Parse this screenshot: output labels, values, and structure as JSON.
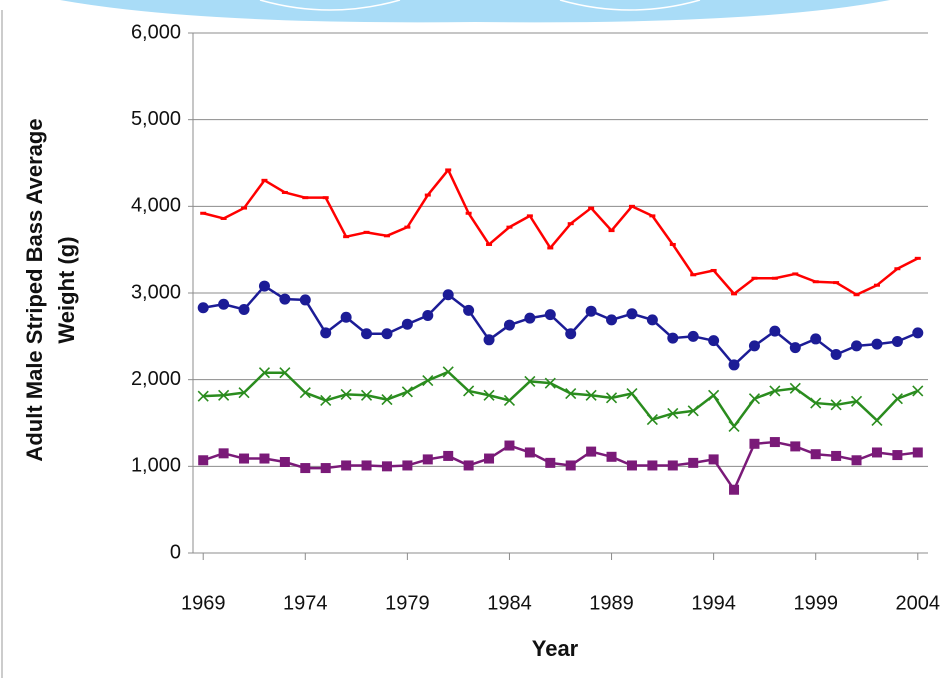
{
  "chart_data": {
    "type": "line",
    "xlabel": "Year",
    "ylabel": [
      "Adult Male Striped Bass Average",
      "Weight (g)"
    ],
    "x": [
      1969,
      1970,
      1971,
      1972,
      1973,
      1974,
      1975,
      1976,
      1977,
      1978,
      1979,
      1980,
      1981,
      1982,
      1983,
      1984,
      1985,
      1986,
      1987,
      1988,
      1989,
      1990,
      1991,
      1992,
      1993,
      1994,
      1995,
      1996,
      1997,
      1998,
      1999,
      2000,
      2001,
      2002,
      2003,
      2004
    ],
    "series": [
      {
        "color": "#ff0000",
        "marker": "dash",
        "values": [
          3920,
          3860,
          3980,
          4300,
          4160,
          4100,
          4100,
          3650,
          3700,
          3660,
          3760,
          4130,
          4420,
          3920,
          3560,
          3760,
          3890,
          3520,
          3800,
          3980,
          3720,
          4000,
          3890,
          3560,
          3210,
          3260,
          2990,
          3170,
          3170,
          3220,
          3130,
          3120,
          2980,
          3090,
          3280,
          3400
        ]
      },
      {
        "color": "#1c1c96",
        "marker": "circle",
        "values": [
          2830,
          2870,
          2810,
          3080,
          2930,
          2920,
          2540,
          2720,
          2530,
          2530,
          2640,
          2740,
          2980,
          2800,
          2460,
          2630,
          2710,
          2750,
          2530,
          2790,
          2690,
          2760,
          2690,
          2480,
          2500,
          2450,
          2170,
          2390,
          2560,
          2370,
          2470,
          2290,
          2390,
          2410,
          2440,
          2540
        ]
      },
      {
        "color": "#2a8c1e",
        "marker": "cross",
        "values": [
          1810,
          1820,
          1850,
          2080,
          2080,
          1850,
          1760,
          1830,
          1820,
          1770,
          1860,
          1990,
          2090,
          1870,
          1820,
          1760,
          1980,
          1960,
          1840,
          1820,
          1790,
          1840,
          1540,
          1610,
          1640,
          1820,
          1460,
          1780,
          1870,
          1900,
          1730,
          1710,
          1750,
          1530,
          1780,
          1870
        ]
      },
      {
        "color": "#7a1a78",
        "marker": "square",
        "values": [
          1070,
          1150,
          1090,
          1090,
          1050,
          980,
          980,
          1010,
          1010,
          1000,
          1010,
          1080,
          1120,
          1010,
          1090,
          1240,
          1160,
          1040,
          1010,
          1170,
          1110,
          1010,
          1010,
          1010,
          1040,
          1080,
          730,
          1260,
          1280,
          1230,
          1140,
          1120,
          1070,
          1160,
          1130,
          1160
        ]
      }
    ],
    "xlim": [
      1968.5,
      2004.5
    ],
    "xticks": [
      1969,
      1974,
      1979,
      1984,
      1989,
      1994,
      1999,
      2004
    ],
    "ylim": [
      0,
      6000
    ],
    "yticks": [
      0,
      {
        "value": 1000,
        "label": "1,000"
      },
      {
        "value": 2000,
        "label": "2,000"
      },
      {
        "value": 3000,
        "label": "3,000"
      },
      {
        "value": 4000,
        "label": "4,000"
      },
      {
        "value": 5000,
        "label": "5,000"
      },
      {
        "value": 6000,
        "label": "6,000"
      }
    ],
    "grid": true
  }
}
